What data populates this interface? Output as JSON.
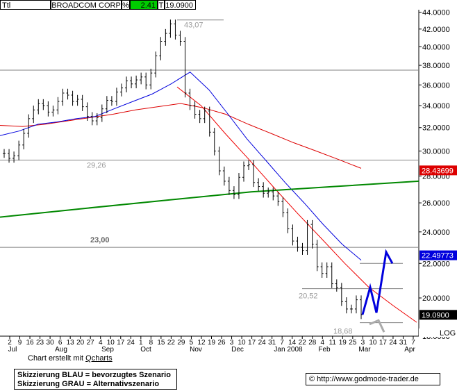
{
  "header": {
    "symbol": "Ttl",
    "name": "BROADCOM CORP",
    "pct_label": "%",
    "change": "2.41",
    "t_label": "T",
    "price": "19.0900",
    "change_color": "#00cc00"
  },
  "chart_data": {
    "type": "line",
    "title": "BROADCOM CORP",
    "y_axis": {
      "ylim": [
        18.0,
        44.3
      ],
      "ticks": [
        "44.0000",
        "42.0000",
        "40.0000",
        "38.0000",
        "36.0000",
        "34.0000",
        "32.0000",
        "30.0000",
        "28.0000",
        "26.0000",
        "24.0000",
        "22.0000",
        "20.0000",
        "18.0000"
      ],
      "scale": "log"
    },
    "x_axis": {
      "ticks": [
        "2",
        "9",
        "16",
        "23",
        "30",
        "6",
        "13",
        "20",
        "27",
        "4",
        "10",
        "17",
        "24",
        "1",
        "8",
        "15",
        "22",
        "29",
        "5",
        "12",
        "19",
        "26",
        "3",
        "10",
        "17",
        "24",
        "31",
        "7",
        "14",
        "22",
        "28",
        "4",
        "11",
        "19",
        "25",
        "3",
        "10",
        "17",
        "24",
        "31",
        "7"
      ],
      "months": [
        "Jul",
        "Aug",
        "Sep",
        "Oct",
        "Nov",
        "Dec",
        "Jan 2008",
        "Feb",
        "Mar",
        "Apr"
      ]
    },
    "price_closes": [
      29.8,
      29.4,
      29.6,
      30.5,
      31.5,
      32.8,
      33.6,
      34.2,
      34.0,
      33.4,
      33.6,
      34.4,
      35.2,
      35.0,
      34.4,
      34.6,
      33.9,
      33.0,
      32.6,
      32.9,
      33.7,
      34.5,
      34.4,
      35.3,
      35.7,
      36.4,
      36.1,
      36.5,
      36.8,
      36.0,
      37.2,
      39.0,
      40.6,
      41.5,
      42.6,
      41.3,
      40.6,
      35.2,
      34.0,
      33.2,
      32.8,
      33.5,
      31.6,
      30.0,
      28.4,
      27.6,
      26.9,
      26.6,
      27.9,
      28.8,
      28.9,
      27.5,
      27.2,
      26.7,
      26.8,
      26.5,
      26.1,
      25.3,
      24.2,
      23.4,
      23.0,
      22.8,
      24.5,
      23.2,
      21.8,
      21.4,
      21.8,
      20.8,
      20.6,
      19.8,
      19.4,
      19.4,
      19.9,
      19.1
    ],
    "horizontal_levels": [
      {
        "value": 43.07,
        "label": "43,07"
      },
      {
        "value": 37.5,
        "label": ""
      },
      {
        "value": 29.26,
        "label": "29,26"
      },
      {
        "value": 23.0,
        "label": "23,00"
      },
      {
        "value": 22.0,
        "label": ""
      },
      {
        "value": 20.52,
        "label": "20,52"
      },
      {
        "value": 18.68,
        "label": "18,68"
      }
    ],
    "price_labels": [
      {
        "value": 28.43699,
        "text": "28.43699",
        "color": "#dd0000"
      },
      {
        "value": 22.49773,
        "text": "22.49773",
        "color": "#0000dd"
      },
      {
        "value": 19.09,
        "text": "19.0900",
        "color": "#000000"
      }
    ],
    "series": [
      {
        "name": "",
        "color": "#dd0000",
        "values": [
          32.2,
          32.1,
          32.3,
          32.6,
          32.9,
          33.2,
          33.6,
          33.9,
          34.2,
          33.8,
          33.2,
          32.3,
          31.5,
          30.7,
          30.0,
          29.3,
          28.6
        ]
      },
      {
        "name": "",
        "color": "#0000dd",
        "values": [
          31.3,
          31.7,
          32.3,
          32.5,
          32.8,
          33.0,
          33.7,
          34.4,
          35.1,
          36.1,
          37.3,
          35.5,
          33.2,
          31.0,
          29.2,
          27.5,
          26.0,
          24.5,
          23.2,
          22.2
        ]
      },
      {
        "name": "",
        "color": "#ee0000",
        "values": [
          35.8,
          34.0,
          31.5,
          29.3,
          27.2,
          25.3,
          23.6,
          22.0,
          20.6,
          19.6,
          18.7
        ]
      },
      {
        "name": "",
        "color": "#008800",
        "values": [
          25.0,
          25.6,
          26.2,
          26.8,
          27.2,
          27.6
        ]
      }
    ],
    "scenarios": {
      "blue": [
        19.1,
        20.6,
        19.2,
        22.7,
        22.0
      ],
      "grey": [
        18.6,
        18.8,
        18.2
      ]
    },
    "log_label": "LOG"
  },
  "footer": {
    "credit_prefix": "Chart erstellt mit ",
    "credit_brand": "Qcharts",
    "note_line1": "Skizzierung BLAU = bevorzugtes Szenario",
    "note_line2": "Skizzierung GRAU = Alternativszenario",
    "copyright": "©",
    "url": "http://www.godmode-trader.de"
  }
}
